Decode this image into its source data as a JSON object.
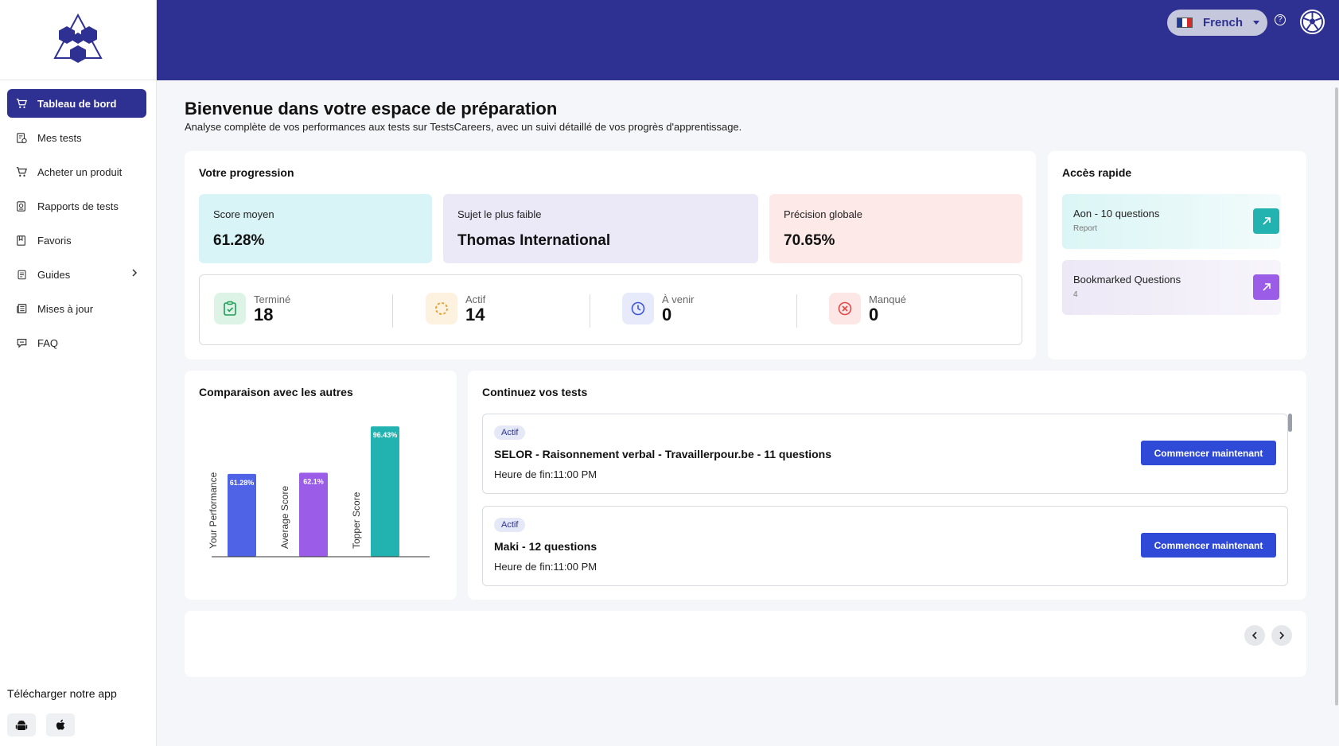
{
  "sidebar": {
    "items": [
      {
        "label": "Tableau de bord",
        "icon": "cart-icon"
      },
      {
        "label": "Mes tests",
        "icon": "tests-icon"
      },
      {
        "label": "Acheter un produit",
        "icon": "cart-icon"
      },
      {
        "label": "Rapports de tests",
        "icon": "report-icon"
      },
      {
        "label": "Favoris",
        "icon": "bookmark-icon"
      },
      {
        "label": "Guides",
        "icon": "document-icon"
      },
      {
        "label": "Mises à jour",
        "icon": "news-icon"
      },
      {
        "label": "FAQ",
        "icon": "chat-icon"
      }
    ],
    "download_label": "Télécharger notre app"
  },
  "header": {
    "language": "French"
  },
  "page": {
    "title": "Bienvenue dans votre espace de préparation",
    "subtitle": "Analyse complète de vos performances aux tests sur TestsCareers, avec un suivi détaillé de vos progrès d'apprentissage."
  },
  "progress": {
    "title": "Votre progression",
    "stats": [
      {
        "label": "Score moyen",
        "value": "61.28%",
        "color": "#d9f4f6"
      },
      {
        "label": "Sujet le plus faible",
        "value": "Thomas International",
        "color": "#ebe8f7"
      },
      {
        "label": "Précision globale",
        "value": "70.65%",
        "color": "#fde9e8"
      }
    ],
    "counts": [
      {
        "label": "Terminé",
        "value": "18"
      },
      {
        "label": "Actif",
        "value": "14"
      },
      {
        "label": "À venir",
        "value": "0"
      },
      {
        "label": "Manqué",
        "value": "0"
      }
    ]
  },
  "quick_access": {
    "title": "Accès rapide",
    "items": [
      {
        "title": "Aon - 10 questions",
        "sub": "Report"
      },
      {
        "title": "Bookmarked Questions",
        "sub": "4"
      }
    ]
  },
  "comparison": {
    "title": "Comparaison avec les autres"
  },
  "chart_data": {
    "type": "bar",
    "categories": [
      "Your Performance",
      "Average Score",
      "Topper Score"
    ],
    "values": [
      61.28,
      62.1,
      96.43
    ],
    "value_labels": [
      "61.28%",
      "62.1%",
      "96.43%"
    ],
    "colors": [
      "#4f63e6",
      "#9b5ce8",
      "#22b3b0"
    ],
    "ylim": [
      0,
      100
    ]
  },
  "continue": {
    "title": "Continuez vos tests",
    "tests": [
      {
        "badge": "Actif",
        "name": "SELOR - Raisonnement verbal - Travaillerpour.be - 11 questions",
        "end": "Heure de fin:11:00 PM",
        "button": "Commencer maintenant"
      },
      {
        "badge": "Actif",
        "name": "Maki - 12 questions",
        "end": "Heure de fin:11:00 PM",
        "button": "Commencer maintenant"
      }
    ]
  }
}
